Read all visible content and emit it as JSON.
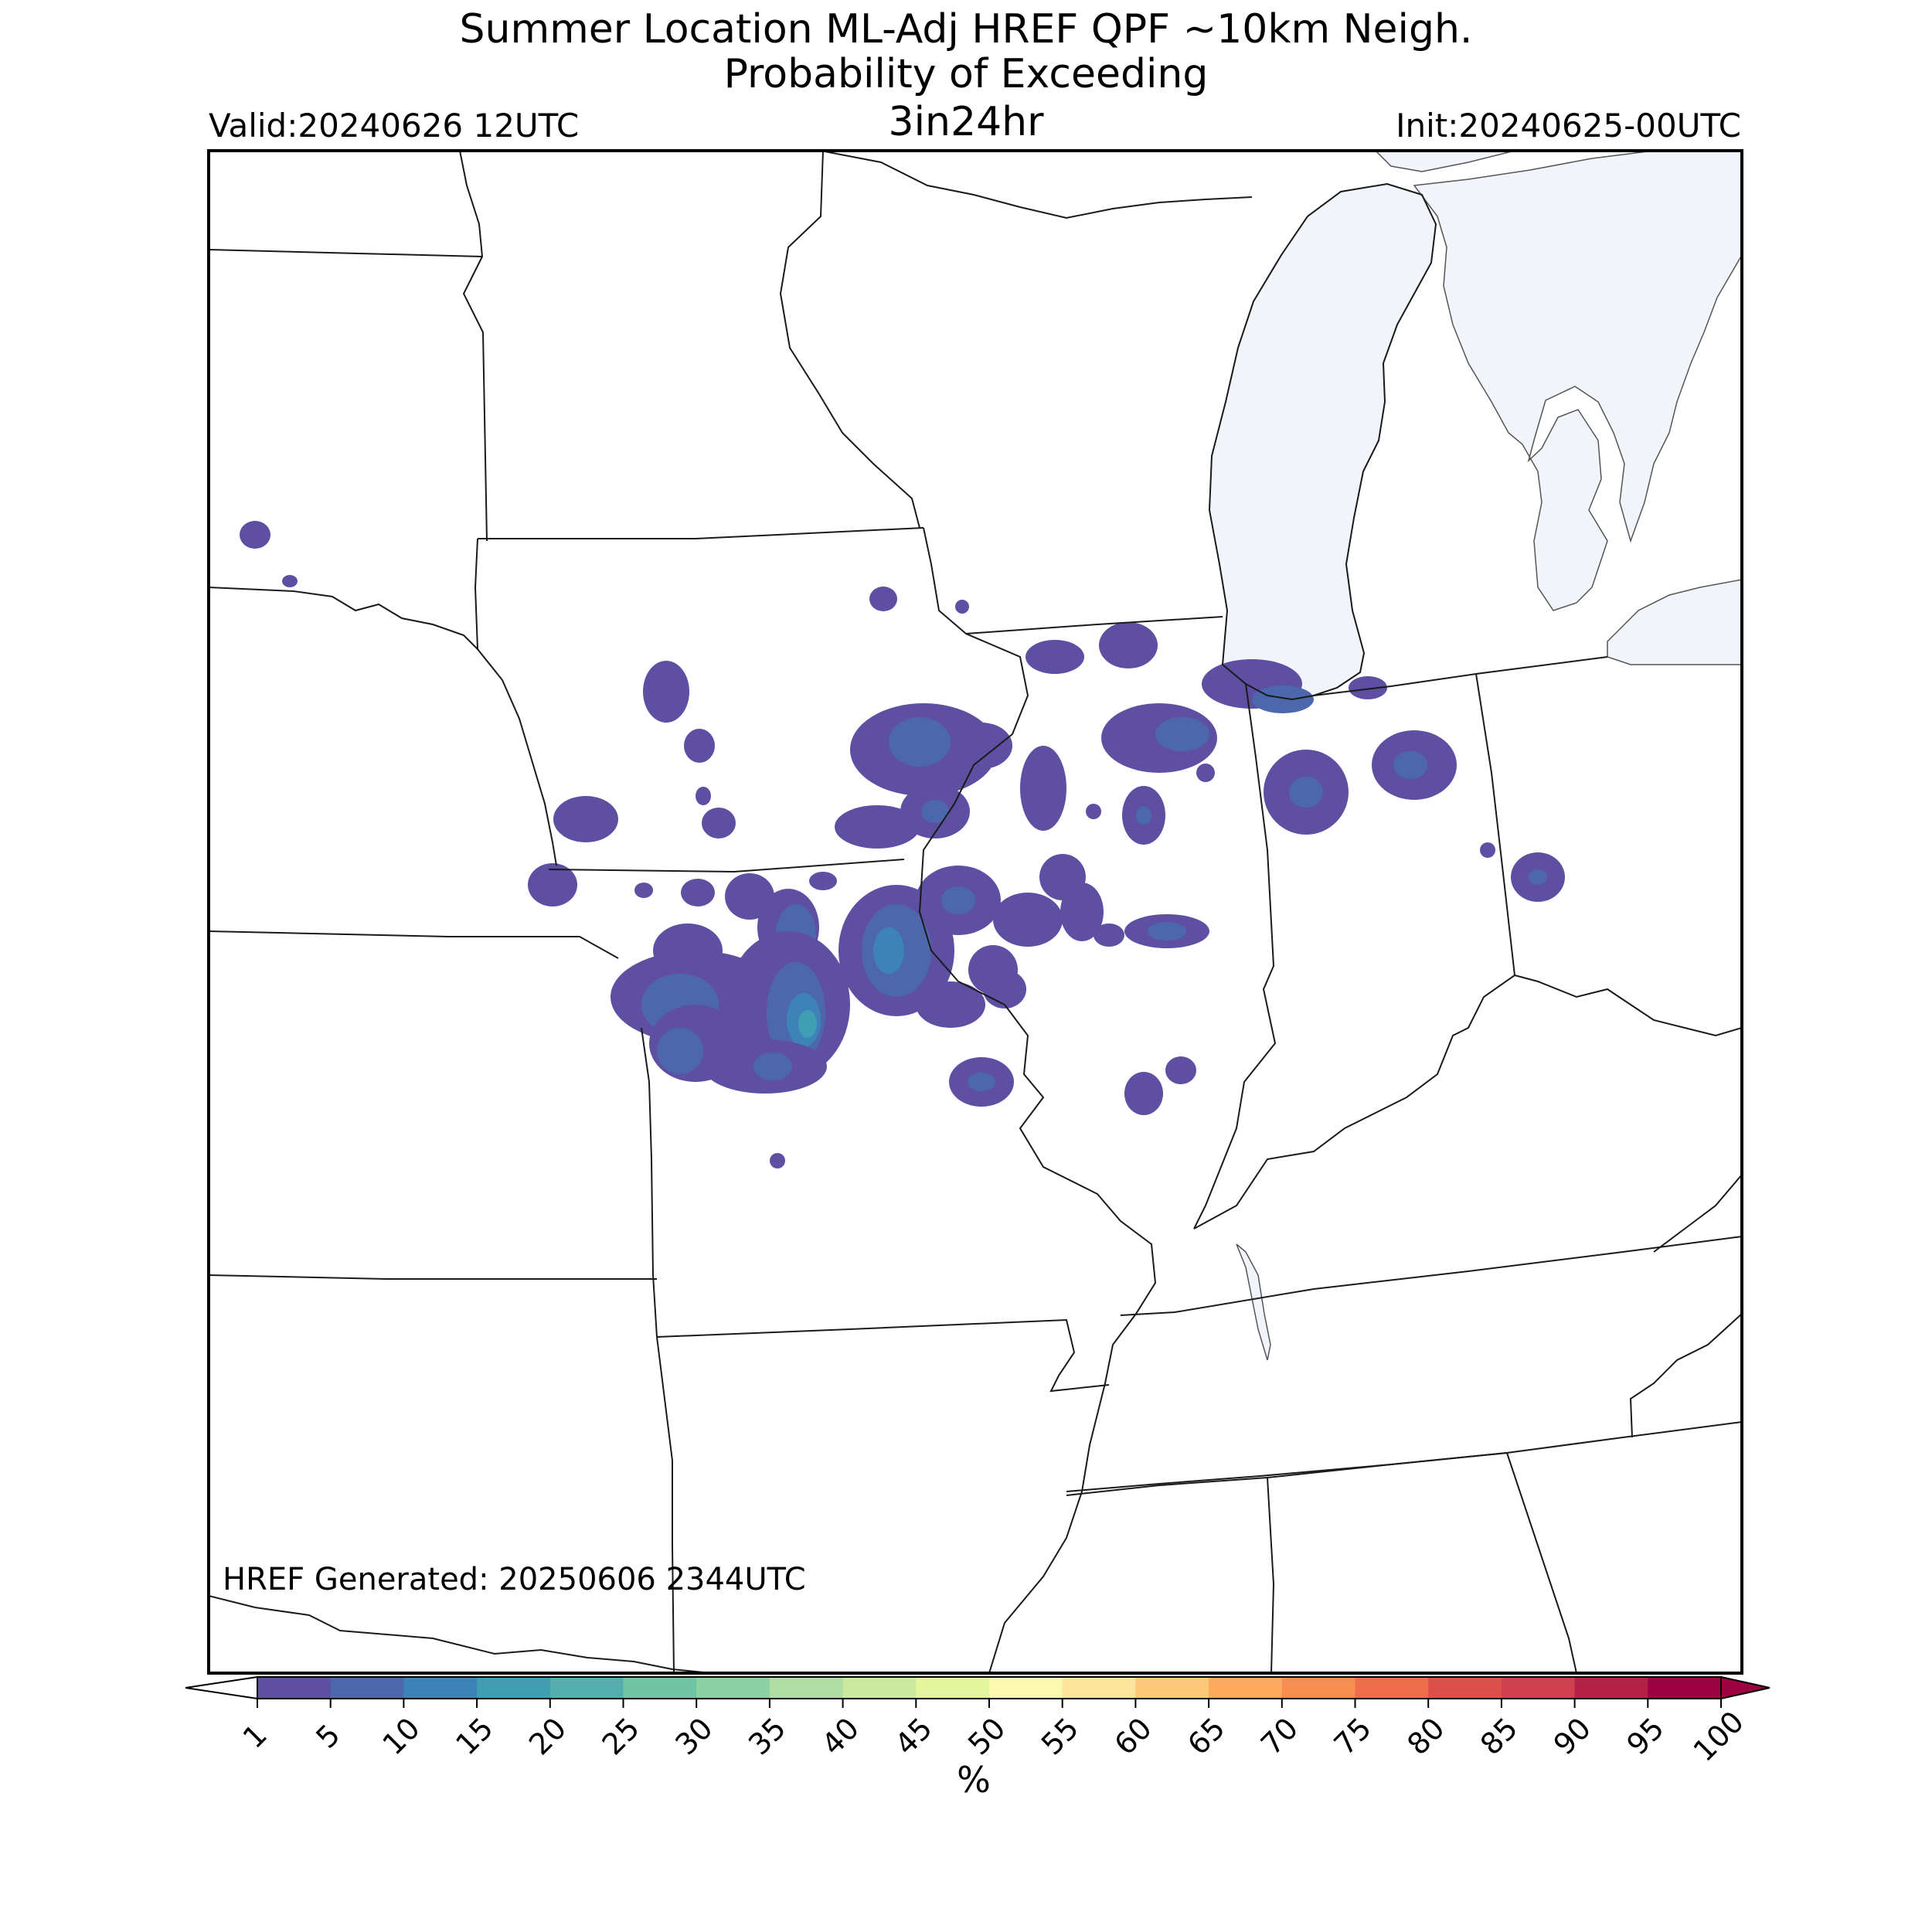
{
  "title": {
    "line1": "Summer Location ML-Adj HREF QPF ~10km Neigh.",
    "line2": "Probability of Exceeding",
    "line3": "3in24hr"
  },
  "valid": "Valid:20240626 12UTC",
  "init": "Init:20240625-00UTC",
  "generated": "HREF Generated: 20250606 2344UTC",
  "colorbar": {
    "unit": "%",
    "ticks": [
      "1",
      "5",
      "10",
      "15",
      "20",
      "25",
      "30",
      "35",
      "40",
      "45",
      "50",
      "55",
      "60",
      "65",
      "70",
      "75",
      "80",
      "85",
      "90",
      "95",
      "100"
    ],
    "colors": [
      "#5e4fa2",
      "#4d67ad",
      "#3e83b8",
      "#3f9db4",
      "#54aead",
      "#6fc4a4",
      "#8cd1a4",
      "#afdda3",
      "#cbe99e",
      "#e4f49a",
      "#fbf8af",
      "#fee49a",
      "#fdc978",
      "#fdaa5f",
      "#f88d52",
      "#f06d4a",
      "#dd4f4a",
      "#cf3f4f",
      "#b51f48",
      "#9e0142"
    ],
    "under_color": "#ffffff",
    "over_color": "#9e0142"
  },
  "map": {
    "water_color": "#f1f5fb",
    "border_color": "#1a1a1a"
  }
}
